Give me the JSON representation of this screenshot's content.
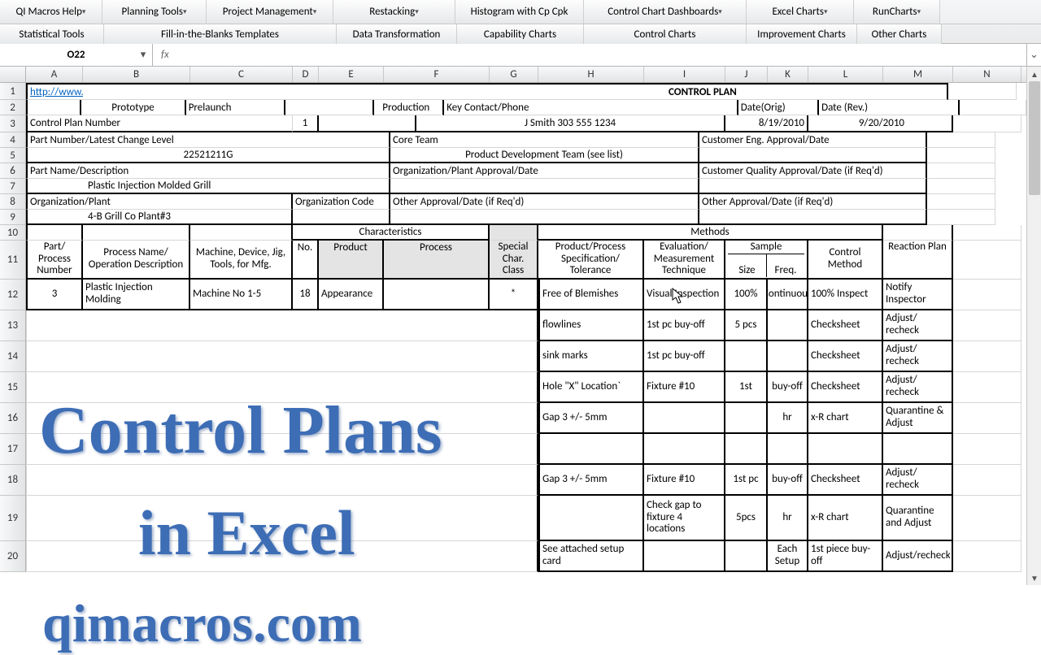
{
  "ribbon": {
    "top": [
      "QI Macros Help",
      "Planning Tools",
      "Project Management",
      "Restacking",
      "Histogram with Cp Cpk",
      "Control Chart Dashboards",
      "Excel Charts",
      "RunCharts"
    ],
    "bottom": [
      "Statistical Tools",
      "Fill-in-the-Blanks Templates",
      "Data Transformation",
      "Capability Charts",
      "Control Charts",
      "Improvement Charts",
      "Other Charts"
    ]
  },
  "formula": {
    "nameBox": "O22",
    "fx": "fx",
    "value": ""
  },
  "columns": [
    "A",
    "B",
    "C",
    "D",
    "E",
    "F",
    "G",
    "H",
    "I",
    "J",
    "K",
    "L",
    "M",
    "N"
  ],
  "colWidthsPx": [
    70,
    132,
    126,
    32,
    80,
    130,
    60,
    130,
    100,
    52,
    50,
    92,
    86,
    84
  ],
  "rows": [
    "1",
    "2",
    "3",
    "4",
    "5",
    "6",
    "7",
    "8",
    "9",
    "10",
    "11",
    "12",
    "13",
    "14",
    "15",
    "16",
    "17",
    "18",
    "19",
    "20"
  ],
  "rowHeightsPx": {
    "1": 21,
    "2": 19,
    "3": 21,
    "4": 19,
    "5": 19,
    "6": 19,
    "7": 19,
    "8": 19,
    "9": 19,
    "10": 19,
    "11": 48,
    "12": 38,
    "13": 38,
    "14": 38,
    "15": 38,
    "16": 38,
    "17": 38,
    "18": 38,
    "19": 56,
    "20": 38
  },
  "header": {
    "link": "http://www.aiag.org/",
    "title": "CONTROL PLAN",
    "prototype": "Prototype",
    "prelaunch": "Prelaunch",
    "production": "Production",
    "keyContact": "Key Contact/Phone",
    "dateOrig": "Date(Orig)",
    "dateRev": "Date (Rev.)",
    "cpNumLabel": "Control Plan Number",
    "cpNum": "1",
    "keyContactVal": "J Smith 303 555 1234",
    "dateOrigVal": "8/19/2010",
    "dateRevVal": "9/20/2010",
    "pnLabel": "Part Number/Latest Change Level",
    "coreTeam": "Core Team",
    "custEng": "Customer Eng. Approval/Date",
    "pnVal": "22521211G",
    "coreTeamVal": "Product Development Team (see list)",
    "partNameLabel": "Part Name/Description",
    "orgApproval": "Organization/Plant Approval/Date",
    "custQual": "Customer Quality Approval/Date (if Req'd)",
    "partNameVal": "Plastic Injection Molded Grill",
    "orgPlantLabel": "Organization/Plant",
    "orgCode": "Organization Code",
    "otherApproval1": "Other Approval/Date (if Req'd)",
    "otherApproval2": "Other Approval/Date (if Req'd)",
    "orgPlantVal": "4-B Grill Co Plant#3"
  },
  "tableHeaders": {
    "characteristics": "Characteristics",
    "methods": "Methods",
    "partProcessNumber": "Part/ Process Number",
    "processName": "Process Name/ Operation Description",
    "machine": "Machine, Device, Jig, Tools, for Mfg.",
    "no": "No.",
    "product": "Product",
    "process": "Process",
    "specialChar": "Special Char. Class",
    "spec": "Product/Process Specification/ Tolerance",
    "eval": "Evaluation/ Measurement Technique",
    "sample": "Sample",
    "size": "Size",
    "freq": "Freq.",
    "controlMethod": "Control Method",
    "reactionPlan": "Reaction Plan"
  },
  "rowsData": [
    {
      "part": "3",
      "proc": "Plastic Injection Molding",
      "machine": "Machine No 1-5",
      "no": "18",
      "product": "Appearance",
      "process": "",
      "spc": "*",
      "spec": "Free of Blemishes",
      "eval": "Visual Inspection",
      "size": "100%",
      "freq": "Continuous",
      "ctrl": "100% Inspect",
      "react": "Notify Inspector"
    },
    {
      "part": "",
      "proc": "",
      "machine": "",
      "no": "",
      "product": "",
      "process": "",
      "spc": "",
      "spec": "flowlines",
      "eval": "1st pc buy-off",
      "size": "5 pcs",
      "freq": "",
      "ctrl": "Checksheet",
      "react": "Adjust/ recheck"
    },
    {
      "part": "",
      "proc": "",
      "machine": "",
      "no": "",
      "product": "",
      "process": "",
      "spc": "",
      "spec": "sink marks",
      "eval": "1st pc buy-off",
      "size": "",
      "freq": "",
      "ctrl": "Checksheet",
      "react": "Adjust/ recheck"
    },
    {
      "part": "",
      "proc": "",
      "machine": "",
      "no": "",
      "product": "",
      "process": "",
      "spc": "",
      "spec": "Hole \"X\" Location`",
      "eval": "Fixture #10",
      "size": "1st",
      "freq": "buy-off",
      "ctrl": "Checksheet",
      "react": "Adjust/ recheck"
    },
    {
      "part": "",
      "proc": "",
      "machine": "",
      "no": "",
      "product": "",
      "process": "",
      "spc": "",
      "spec": "Gap 3 +/- 5mm",
      "eval": "",
      "size": "",
      "freq": "hr",
      "ctrl": "x-R chart",
      "react": "Quarantine & Adjust"
    },
    {
      "part": "",
      "proc": "",
      "machine": "",
      "no": "",
      "product": "",
      "process": "",
      "spc": "",
      "spec": "",
      "eval": "",
      "size": "",
      "freq": "",
      "ctrl": "",
      "react": ""
    },
    {
      "part": "",
      "proc": "",
      "machine": "",
      "no": "",
      "product": "",
      "process": "",
      "spc": "",
      "spec": "Gap 3 +/- 5mm",
      "eval": "Fixture #10",
      "size": "1st pc",
      "freq": "buy-off",
      "ctrl": "Checksheet",
      "react": "Adjust/ recheck"
    },
    {
      "part": "",
      "proc": "",
      "machine": "",
      "no": "",
      "product": "",
      "process": "",
      "spc": "",
      "spec": "",
      "eval": "Check gap to fixture 4 locations",
      "size": "5pcs",
      "freq": "hr",
      "ctrl": "x-R chart",
      "react": "Quarantine and Adjust"
    },
    {
      "part": "",
      "proc": "",
      "machine": "",
      "no": "",
      "product": "",
      "process": "",
      "spc": "",
      "spec": "See attached setup card",
      "eval": "",
      "size": "",
      "freq": "Each Setup",
      "ctrl": "1st piece buy-off",
      "react": "Adjust/recheck"
    }
  ],
  "overlay": {
    "line1": "Control Plans",
    "line2": "in Excel",
    "url": "qimacros.com"
  },
  "colors": {
    "overlay": "#3d6db5",
    "shaded": "#e4e4e4",
    "link": "#0563c1",
    "border": "#000000"
  }
}
